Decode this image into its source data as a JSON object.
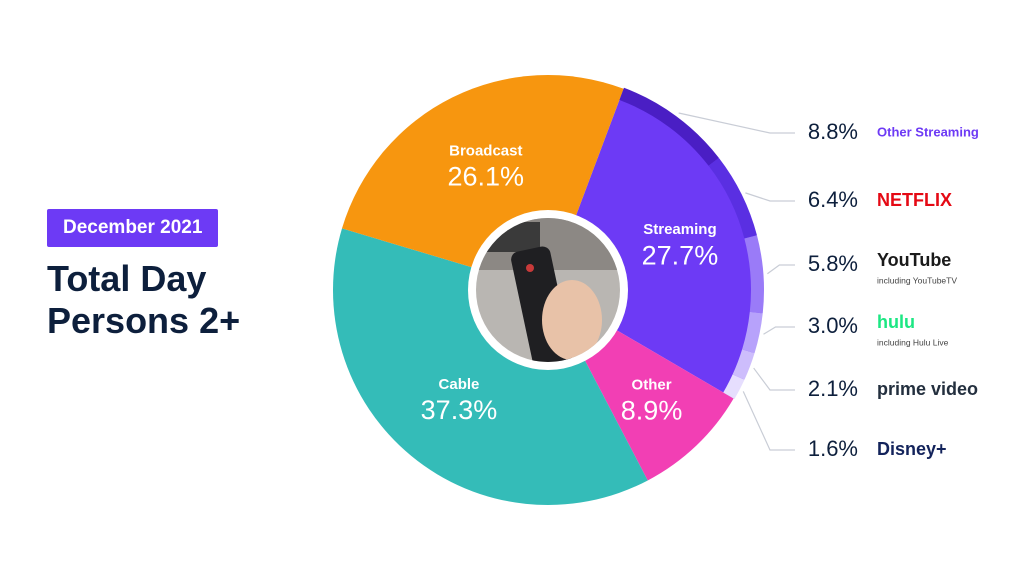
{
  "chart_data": {
    "type": "donut",
    "badge": "December 2021",
    "title": "Total Day Persons 2+",
    "categories": [
      "Streaming",
      "Other",
      "Cable",
      "Broadcast"
    ],
    "values": [
      27.7,
      8.9,
      37.3,
      26.1
    ],
    "value_labels": [
      "27.7%",
      "8.9%",
      "37.3%",
      "26.1%"
    ],
    "colors": [
      "#6d3af5",
      "#f23fb4",
      "#34bcb8",
      "#f7960f"
    ],
    "streaming_breakdown": [
      {
        "name": "Other Streaming",
        "value": 8.8,
        "value_label": "8.8%",
        "color": "#4a1ec4",
        "label_color": "#6d3af5"
      },
      {
        "name": "NETFLIX",
        "value": 6.4,
        "value_label": "6.4%",
        "color": "#5a2fe2",
        "label_color": "#e50914"
      },
      {
        "name": "YouTube",
        "note": "including YouTubeTV",
        "value": 5.8,
        "value_label": "5.8%",
        "color": "#9a7bf8",
        "label_color": "#1a1a1a"
      },
      {
        "name": "hulu",
        "note": "including Hulu Live",
        "value": 3.0,
        "value_label": "3.0%",
        "color": "#b7a2fb",
        "label_color": "#1ce783"
      },
      {
        "name": "prime video",
        "value": 2.1,
        "value_label": "2.1%",
        "color": "#cdbdfc",
        "label_color": "#232f3e"
      },
      {
        "name": "Disney+",
        "value": 1.6,
        "value_label": "1.6%",
        "color": "#e6defe",
        "label_color": "#13235b"
      }
    ]
  }
}
